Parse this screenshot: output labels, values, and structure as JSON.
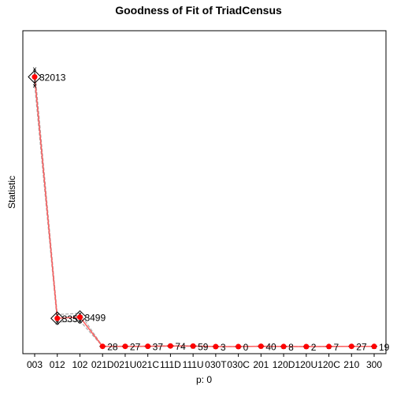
{
  "chart_data": {
    "type": "line",
    "title": "Goodness of Fit of TriadCensus",
    "xlabel": "p: 0",
    "ylabel": "Statistic",
    "categories": [
      "003",
      "012",
      "102",
      "021D",
      "021U",
      "021C",
      "111D",
      "111U",
      "030T",
      "030C",
      "201",
      "120D",
      "120U",
      "120C",
      "210",
      "300"
    ],
    "ylim": [
      0,
      36000
    ],
    "observed": {
      "values": [
        32013,
        3357,
        3499,
        28,
        27,
        37,
        74,
        59,
        3,
        0,
        40,
        8,
        2,
        7,
        27,
        19
      ],
      "labels": [
        "32013",
        "3357",
        "3499",
        "28",
        "27",
        "37",
        "74",
        "59",
        "3",
        "0",
        "40",
        "8",
        "2",
        "7",
        "27",
        "19"
      ]
    },
    "simulated": {
      "mean": [
        32013,
        3357,
        3499,
        28,
        27,
        37,
        74,
        59,
        3,
        0,
        40,
        8,
        2,
        7,
        27,
        19
      ],
      "min": [
        31000,
        2900,
        3050,
        10,
        10,
        15,
        40,
        30,
        0,
        0,
        20,
        0,
        0,
        0,
        10,
        5
      ],
      "max": [
        33000,
        3800,
        3950,
        50,
        50,
        60,
        110,
        90,
        10,
        5,
        60,
        20,
        10,
        20,
        50,
        35
      ]
    },
    "colors": {
      "observed": "#ff0000",
      "mean_line": "#ff6060",
      "range_lines": "#aaaaaa",
      "markers": "#000000"
    }
  }
}
